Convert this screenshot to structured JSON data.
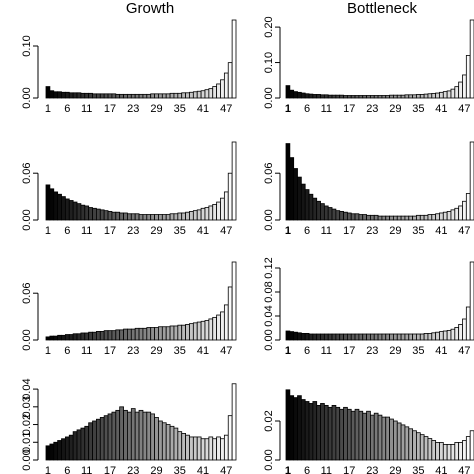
{
  "column_titles": [
    "Growth",
    "Bottleneck"
  ],
  "chart_data": [
    {
      "type": "bar",
      "column": "Growth",
      "title": "Growth",
      "x_tick_labels": [
        "1",
        "6",
        "11",
        "17",
        "23",
        "29",
        "35",
        "41",
        "47"
      ],
      "y_tick_labels": [
        "0.00",
        "0.10"
      ],
      "ylim": [
        0,
        0.15
      ],
      "values": [
        0.022,
        0.014,
        0.012,
        0.012,
        0.011,
        0.011,
        0.01,
        0.01,
        0.01,
        0.009,
        0.009,
        0.009,
        0.008,
        0.008,
        0.008,
        0.008,
        0.008,
        0.008,
        0.007,
        0.007,
        0.007,
        0.007,
        0.007,
        0.007,
        0.007,
        0.007,
        0.007,
        0.008,
        0.008,
        0.008,
        0.008,
        0.008,
        0.009,
        0.009,
        0.009,
        0.01,
        0.01,
        0.011,
        0.012,
        0.013,
        0.014,
        0.016,
        0.018,
        0.022,
        0.027,
        0.035,
        0.048,
        0.068,
        0.15
      ]
    },
    {
      "type": "bar",
      "column": "Bottleneck",
      "title": "Bottleneck",
      "x_tick_labels": [
        "1",
        "6",
        "11",
        "17",
        "23",
        "29",
        "35",
        "41",
        "47"
      ],
      "y_tick_labels": [
        "0.00",
        "0.10",
        "0.20"
      ],
      "ylim": [
        0,
        0.22
      ],
      "values": [
        0.035,
        0.022,
        0.018,
        0.016,
        0.014,
        0.012,
        0.011,
        0.01,
        0.01,
        0.009,
        0.009,
        0.008,
        0.008,
        0.008,
        0.008,
        0.007,
        0.007,
        0.007,
        0.007,
        0.007,
        0.007,
        0.007,
        0.007,
        0.007,
        0.007,
        0.007,
        0.007,
        0.008,
        0.008,
        0.008,
        0.008,
        0.009,
        0.009,
        0.009,
        0.01,
        0.01,
        0.011,
        0.012,
        0.013,
        0.014,
        0.016,
        0.018,
        0.02,
        0.025,
        0.032,
        0.045,
        0.065,
        0.12,
        0.22
      ]
    },
    {
      "type": "bar",
      "column": "Growth",
      "x_tick_labels": [
        "1",
        "6",
        "11",
        "17",
        "23",
        "29",
        "35",
        "41",
        "47"
      ],
      "y_tick_labels": [
        "0.00",
        "0.06"
      ],
      "ylim": [
        0,
        0.1
      ],
      "values": [
        0.045,
        0.04,
        0.036,
        0.033,
        0.03,
        0.027,
        0.025,
        0.023,
        0.021,
        0.019,
        0.018,
        0.016,
        0.015,
        0.014,
        0.013,
        0.012,
        0.011,
        0.01,
        0.01,
        0.009,
        0.009,
        0.008,
        0.008,
        0.008,
        0.007,
        0.007,
        0.007,
        0.007,
        0.007,
        0.007,
        0.007,
        0.007,
        0.008,
        0.008,
        0.009,
        0.009,
        0.01,
        0.011,
        0.012,
        0.013,
        0.015,
        0.016,
        0.018,
        0.02,
        0.023,
        0.028,
        0.036,
        0.06,
        0.1
      ]
    },
    {
      "type": "bar",
      "column": "Bottleneck",
      "x_tick_labels": [
        "1",
        "6",
        "11",
        "17",
        "23",
        "29",
        "35",
        "41",
        "47"
      ],
      "y_tick_labels": [
        "0.00",
        "0.06"
      ],
      "ylim": [
        0,
        0.1
      ],
      "values": [
        0.098,
        0.08,
        0.066,
        0.055,
        0.046,
        0.039,
        0.033,
        0.028,
        0.024,
        0.021,
        0.018,
        0.016,
        0.014,
        0.012,
        0.011,
        0.01,
        0.009,
        0.008,
        0.008,
        0.007,
        0.007,
        0.006,
        0.006,
        0.006,
        0.005,
        0.005,
        0.005,
        0.005,
        0.005,
        0.005,
        0.005,
        0.005,
        0.005,
        0.005,
        0.006,
        0.006,
        0.006,
        0.007,
        0.007,
        0.008,
        0.009,
        0.01,
        0.011,
        0.013,
        0.015,
        0.018,
        0.024,
        0.034,
        0.1
      ]
    },
    {
      "type": "bar",
      "column": "Growth",
      "x_tick_labels": [
        "1",
        "6",
        "11",
        "17",
        "23",
        "29",
        "35",
        "41",
        "47"
      ],
      "y_tick_labels": [
        "0.00",
        "0.06"
      ],
      "ylim": [
        0,
        0.1
      ],
      "values": [
        0.004,
        0.005,
        0.005,
        0.006,
        0.006,
        0.007,
        0.007,
        0.008,
        0.008,
        0.009,
        0.009,
        0.01,
        0.01,
        0.011,
        0.011,
        0.012,
        0.012,
        0.012,
        0.013,
        0.013,
        0.014,
        0.014,
        0.014,
        0.015,
        0.015,
        0.015,
        0.016,
        0.016,
        0.016,
        0.017,
        0.017,
        0.017,
        0.018,
        0.018,
        0.019,
        0.019,
        0.02,
        0.021,
        0.022,
        0.023,
        0.024,
        0.025,
        0.027,
        0.029,
        0.032,
        0.036,
        0.045,
        0.068,
        0.1
      ]
    },
    {
      "type": "bar",
      "column": "Bottleneck",
      "x_tick_labels": [
        "1",
        "6",
        "11",
        "17",
        "23",
        "29",
        "35",
        "41",
        "47"
      ],
      "y_tick_labels": [
        "0.00",
        "0.04",
        "0.08",
        "0.12"
      ],
      "ylim": [
        0,
        0.13
      ],
      "values": [
        0.015,
        0.014,
        0.013,
        0.012,
        0.011,
        0.011,
        0.01,
        0.01,
        0.01,
        0.01,
        0.01,
        0.01,
        0.01,
        0.01,
        0.01,
        0.01,
        0.01,
        0.01,
        0.01,
        0.01,
        0.01,
        0.01,
        0.01,
        0.01,
        0.01,
        0.01,
        0.01,
        0.01,
        0.01,
        0.01,
        0.01,
        0.01,
        0.01,
        0.01,
        0.01,
        0.01,
        0.011,
        0.011,
        0.012,
        0.013,
        0.014,
        0.015,
        0.016,
        0.018,
        0.021,
        0.026,
        0.035,
        0.055,
        0.13
      ]
    },
    {
      "type": "bar",
      "column": "Growth",
      "x_tick_labels": [
        "1",
        "6",
        "11",
        "17",
        "23",
        "29",
        "35",
        "41",
        "47"
      ],
      "y_tick_labels": [
        "0.00",
        "0.01",
        "0.02",
        "0.03",
        "0.04"
      ],
      "ylim": [
        0,
        0.044
      ],
      "values": [
        0.008,
        0.009,
        0.01,
        0.011,
        0.012,
        0.013,
        0.014,
        0.016,
        0.017,
        0.018,
        0.019,
        0.021,
        0.022,
        0.023,
        0.024,
        0.025,
        0.026,
        0.027,
        0.028,
        0.03,
        0.028,
        0.027,
        0.029,
        0.027,
        0.028,
        0.027,
        0.027,
        0.026,
        0.024,
        0.022,
        0.021,
        0.02,
        0.019,
        0.018,
        0.016,
        0.015,
        0.014,
        0.013,
        0.013,
        0.013,
        0.012,
        0.012,
        0.013,
        0.012,
        0.013,
        0.012,
        0.014,
        0.025,
        0.043
      ]
    },
    {
      "type": "bar",
      "column": "Bottleneck",
      "x_tick_labels": [
        "1",
        "6",
        "11",
        "17",
        "23",
        "29",
        "35",
        "41",
        "47"
      ],
      "y_tick_labels": [
        "0.00",
        "0.02"
      ],
      "ylim": [
        0,
        0.04
      ],
      "values": [
        0.036,
        0.033,
        0.032,
        0.033,
        0.031,
        0.03,
        0.029,
        0.03,
        0.028,
        0.029,
        0.028,
        0.027,
        0.028,
        0.027,
        0.026,
        0.027,
        0.026,
        0.025,
        0.026,
        0.025,
        0.024,
        0.025,
        0.023,
        0.024,
        0.023,
        0.022,
        0.022,
        0.021,
        0.02,
        0.019,
        0.018,
        0.017,
        0.016,
        0.015,
        0.014,
        0.013,
        0.012,
        0.011,
        0.01,
        0.009,
        0.009,
        0.008,
        0.008,
        0.008,
        0.009,
        0.009,
        0.01,
        0.012,
        0.015
      ]
    }
  ]
}
